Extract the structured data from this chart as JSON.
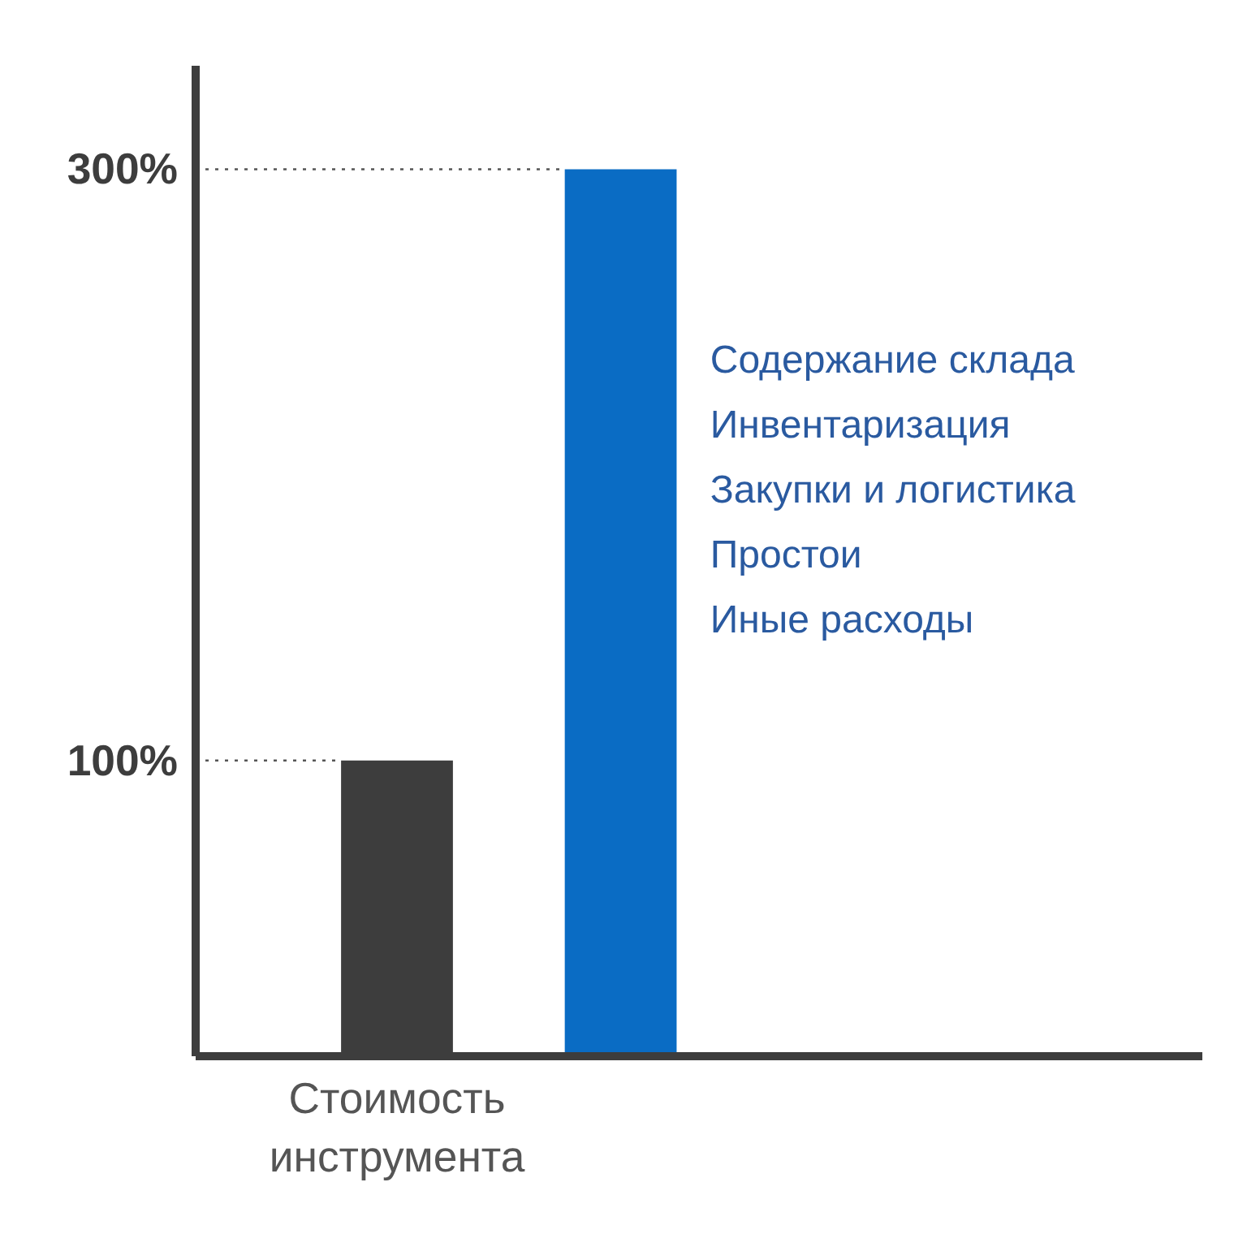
{
  "chart_data": {
    "type": "bar",
    "categories": [
      "Стоимость инструмента",
      null
    ],
    "values": [
      100,
      300
    ],
    "colors": [
      "#3d3d3d",
      "#0a6cc4"
    ],
    "ylim": [
      0,
      335
    ],
    "yticks": [
      {
        "value": 100,
        "label": "100%"
      },
      {
        "value": 300,
        "label": "300%"
      }
    ],
    "ref_lines": [
      {
        "axis": "y",
        "value": 100,
        "line_style": "dotted",
        "color": "#555555"
      },
      {
        "axis": "y",
        "value": 300,
        "line_style": "dotted",
        "color": "#555555"
      }
    ],
    "annotations": [
      "Содержание склада",
      "Инвентаризация",
      "Закупки и логистика",
      "Простои",
      "Иные расходы"
    ],
    "grid": false
  }
}
